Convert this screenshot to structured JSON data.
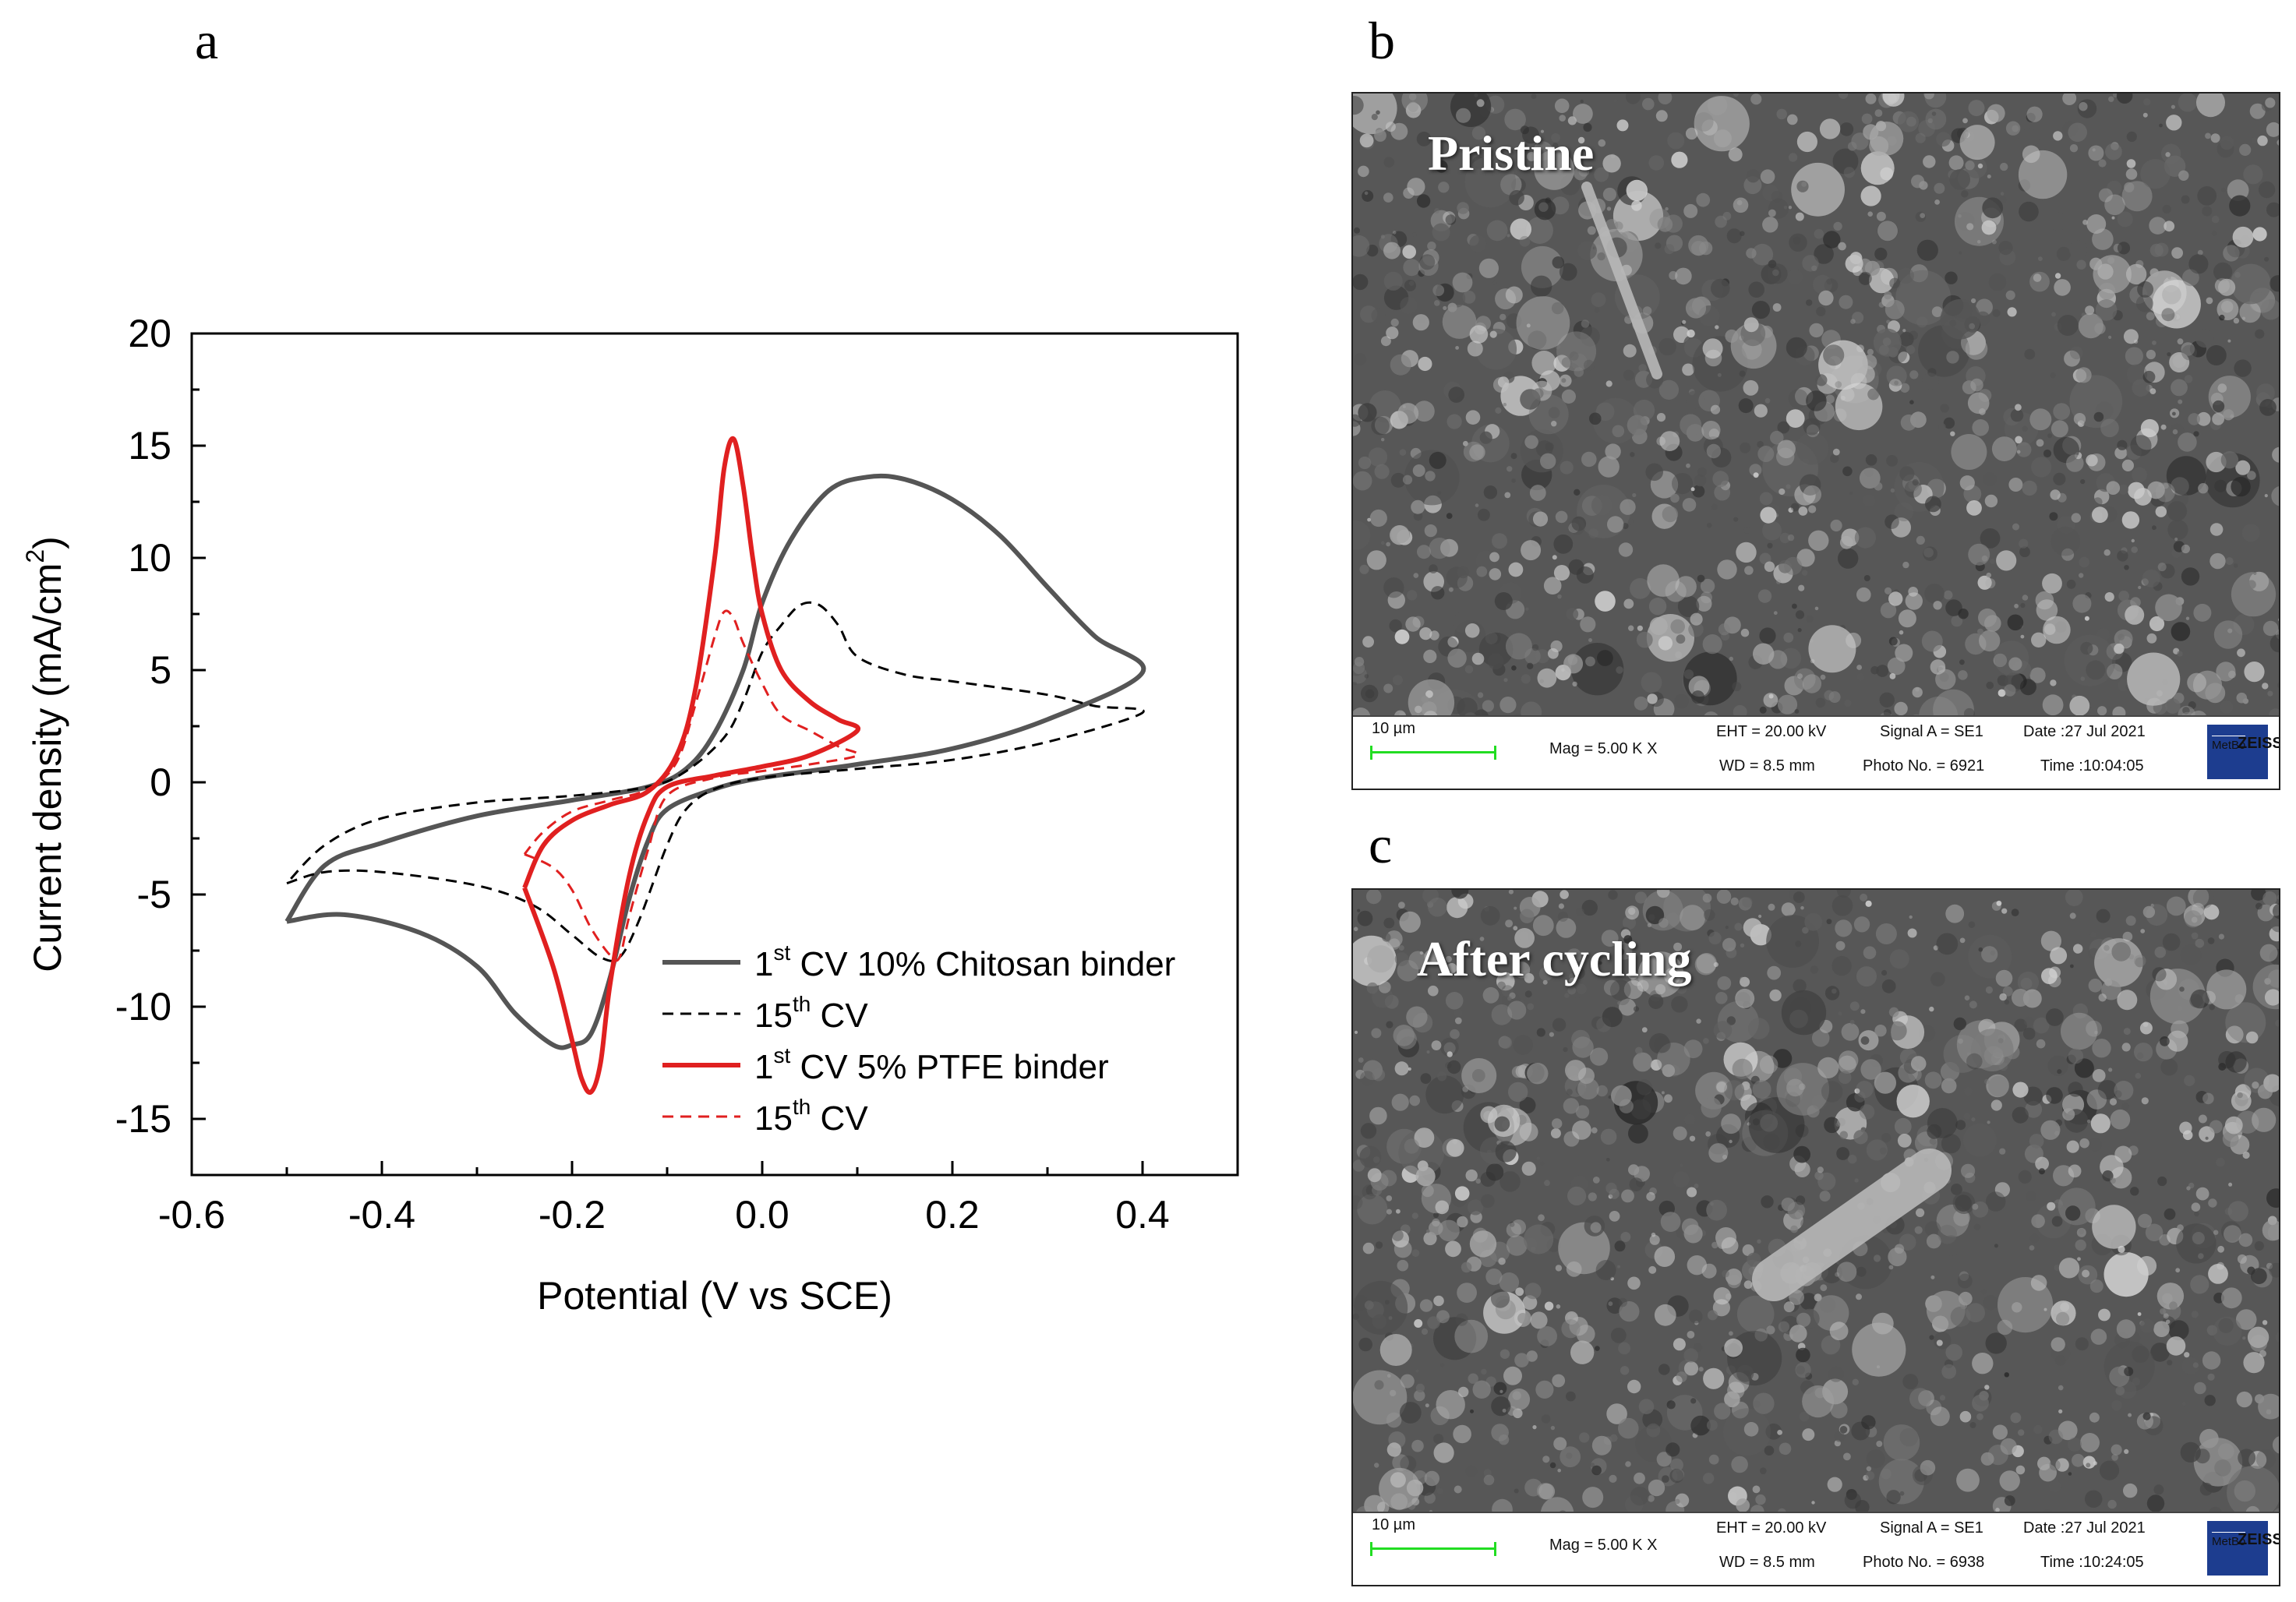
{
  "panels": {
    "a": "a",
    "b": "b",
    "c": "c"
  },
  "chart_data": {
    "type": "line",
    "title": "",
    "xlabel": "Potential (V vs SCE)",
    "ylabel": "Current density (mA/cm²)",
    "xlim": [
      -0.6,
      0.5
    ],
    "ylim": [
      -17.5,
      20
    ],
    "xticks": [
      -0.6,
      -0.4,
      -0.2,
      0.0,
      0.2,
      0.4
    ],
    "xtick_labels": [
      "-0.6",
      "-0.4",
      "-0.2",
      "0.0",
      "0.2",
      "0.4"
    ],
    "yticks": [
      20,
      15,
      10,
      5,
      0,
      -5,
      -10,
      -15
    ],
    "ytick_labels": [
      "20",
      "15",
      "10",
      "5",
      "0",
      "-5",
      "-10",
      "-15"
    ],
    "grid": false,
    "legend_position": "lower-right",
    "series": [
      {
        "legend_parts": [
          "1",
          "st",
          " CV 10% Chitosan binder"
        ],
        "color": "#555555",
        "style": "solid",
        "points": [
          [
            -0.5,
            -6.2
          ],
          [
            -0.44,
            -5.9
          ],
          [
            -0.36,
            -6.7
          ],
          [
            -0.3,
            -8.2
          ],
          [
            -0.26,
            -10.3
          ],
          [
            -0.22,
            -11.7
          ],
          [
            -0.2,
            -11.7
          ],
          [
            -0.18,
            -11.2
          ],
          [
            -0.16,
            -8.7
          ],
          [
            -0.14,
            -5.2
          ],
          [
            -0.12,
            -2.6
          ],
          [
            -0.1,
            -1.2
          ],
          [
            -0.05,
            -0.3
          ],
          [
            0.0,
            0.2
          ],
          [
            0.1,
            0.8
          ],
          [
            0.2,
            1.5
          ],
          [
            0.3,
            2.8
          ],
          [
            0.4,
            4.9
          ],
          [
            0.35,
            6.5
          ],
          [
            0.3,
            8.7
          ],
          [
            0.25,
            11.0
          ],
          [
            0.2,
            12.6
          ],
          [
            0.15,
            13.5
          ],
          [
            0.11,
            13.6
          ],
          [
            0.07,
            13.0
          ],
          [
            0.03,
            10.8
          ],
          [
            0.0,
            8.0
          ],
          [
            -0.02,
            5.0
          ],
          [
            -0.05,
            2.2
          ],
          [
            -0.08,
            0.6
          ],
          [
            -0.12,
            -0.2
          ],
          [
            -0.2,
            -0.8
          ],
          [
            -0.3,
            -1.5
          ],
          [
            -0.4,
            -2.7
          ],
          [
            -0.46,
            -3.7
          ],
          [
            -0.5,
            -6.2
          ]
        ]
      },
      {
        "legend_parts": [
          "15",
          "th",
          " CV"
        ],
        "color": "#000000",
        "style": "dashed",
        "points": [
          [
            -0.5,
            -4.5
          ],
          [
            -0.46,
            -4.0
          ],
          [
            -0.4,
            -4.0
          ],
          [
            -0.3,
            -4.6
          ],
          [
            -0.24,
            -5.5
          ],
          [
            -0.2,
            -6.8
          ],
          [
            -0.17,
            -7.8
          ],
          [
            -0.15,
            -7.8
          ],
          [
            -0.13,
            -6.2
          ],
          [
            -0.1,
            -2.8
          ],
          [
            -0.08,
            -1.2
          ],
          [
            -0.05,
            -0.3
          ],
          [
            0.0,
            0.2
          ],
          [
            0.1,
            0.6
          ],
          [
            0.2,
            1.0
          ],
          [
            0.3,
            1.8
          ],
          [
            0.4,
            3.1
          ],
          [
            0.35,
            3.4
          ],
          [
            0.3,
            3.9
          ],
          [
            0.2,
            4.5
          ],
          [
            0.15,
            4.8
          ],
          [
            0.1,
            5.6
          ],
          [
            0.08,
            7.0
          ],
          [
            0.06,
            7.9
          ],
          [
            0.04,
            7.9
          ],
          [
            0.02,
            7.0
          ],
          [
            0.0,
            5.8
          ],
          [
            -0.02,
            3.6
          ],
          [
            -0.04,
            2.0
          ],
          [
            -0.08,
            0.5
          ],
          [
            -0.12,
            -0.2
          ],
          [
            -0.2,
            -0.6
          ],
          [
            -0.3,
            -0.9
          ],
          [
            -0.4,
            -1.6
          ],
          [
            -0.46,
            -2.8
          ],
          [
            -0.5,
            -4.5
          ]
        ]
      },
      {
        "legend_parts": [
          "1",
          "st",
          " CV 5% PTFE binder"
        ],
        "color": "#e02020",
        "style": "solid",
        "points": [
          [
            -0.25,
            -4.7
          ],
          [
            -0.22,
            -8.2
          ],
          [
            -0.2,
            -11.5
          ],
          [
            -0.19,
            -13.2
          ],
          [
            -0.18,
            -13.8
          ],
          [
            -0.17,
            -12.5
          ],
          [
            -0.16,
            -9.0
          ],
          [
            -0.14,
            -4.2
          ],
          [
            -0.12,
            -1.4
          ],
          [
            -0.1,
            -0.2
          ],
          [
            -0.05,
            0.3
          ],
          [
            0.0,
            0.7
          ],
          [
            0.05,
            1.2
          ],
          [
            0.1,
            2.3
          ],
          [
            0.08,
            2.8
          ],
          [
            0.05,
            3.6
          ],
          [
            0.02,
            5.0
          ],
          [
            0.0,
            7.5
          ],
          [
            -0.01,
            10.0
          ],
          [
            -0.02,
            13.2
          ],
          [
            -0.03,
            15.3
          ],
          [
            -0.04,
            14.0
          ],
          [
            -0.05,
            10.0
          ],
          [
            -0.07,
            4.2
          ],
          [
            -0.09,
            1.2
          ],
          [
            -0.12,
            -0.4
          ],
          [
            -0.16,
            -1.0
          ],
          [
            -0.2,
            -1.7
          ],
          [
            -0.23,
            -2.8
          ],
          [
            -0.25,
            -4.7
          ]
        ]
      },
      {
        "legend_parts": [
          "15",
          "th",
          " CV"
        ],
        "color": "#e02020",
        "style": "dashed",
        "points": [
          [
            -0.25,
            -3.2
          ],
          [
            -0.22,
            -3.8
          ],
          [
            -0.2,
            -4.8
          ],
          [
            -0.18,
            -6.5
          ],
          [
            -0.16,
            -7.7
          ],
          [
            -0.15,
            -7.8
          ],
          [
            -0.14,
            -6.0
          ],
          [
            -0.12,
            -3.0
          ],
          [
            -0.1,
            -0.6
          ],
          [
            -0.05,
            0.2
          ],
          [
            0.0,
            0.5
          ],
          [
            0.05,
            0.8
          ],
          [
            0.1,
            1.2
          ],
          [
            0.08,
            1.6
          ],
          [
            0.05,
            2.3
          ],
          [
            0.02,
            3.0
          ],
          [
            0.0,
            4.4
          ],
          [
            -0.02,
            6.2
          ],
          [
            -0.03,
            7.3
          ],
          [
            -0.04,
            7.6
          ],
          [
            -0.05,
            6.5
          ],
          [
            -0.07,
            3.5
          ],
          [
            -0.09,
            0.9
          ],
          [
            -0.12,
            -0.3
          ],
          [
            -0.16,
            -0.8
          ],
          [
            -0.2,
            -1.3
          ],
          [
            -0.23,
            -2.2
          ],
          [
            -0.25,
            -3.2
          ]
        ]
      }
    ]
  },
  "sem_images": [
    {
      "label": "Pristine",
      "scale": "10 µm",
      "mag": "Mag =   5.00 K X",
      "eht": "EHT = 20.00 kV",
      "wd": "WD =  8.5 mm",
      "signal": "Signal A = SE1",
      "photo": "Photo No. = 6921",
      "date": "Date :27 Jul 2021",
      "time": "Time :10:04:05",
      "logo": "ZEISS",
      "logo_sub": "MetBo"
    },
    {
      "label": "After cycling",
      "scale": "10 µm",
      "mag": "Mag =   5.00 K X",
      "eht": "EHT = 20.00 kV",
      "wd": "WD =  8.5 mm",
      "signal": "Signal A = SE1",
      "photo": "Photo No. = 6938",
      "date": "Date :27 Jul 2021",
      "time": "Time :10:24:05",
      "logo": "ZEISS",
      "logo_sub": "MetBo"
    }
  ]
}
